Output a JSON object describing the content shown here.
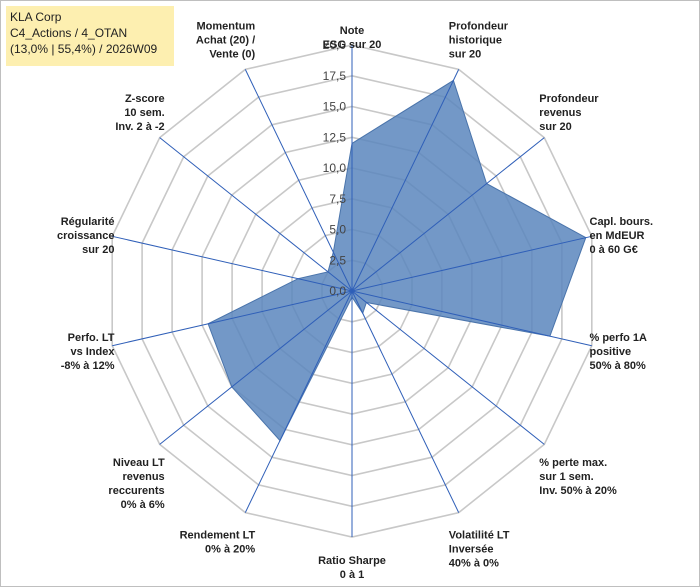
{
  "header": {
    "line1": "KLA Corp",
    "line2": "C4_Actions / 4_OTAN",
    "line3": "(13,0% | 55,4%) / 2026W09"
  },
  "colors": {
    "fill": "#5b86bd",
    "stroke": "#4a74ab",
    "grid": "#c8c8c8",
    "axis": "#2f5fb8",
    "title_bg": "#fdefb0"
  },
  "chart_data": {
    "type": "radar",
    "range": [
      0,
      20
    ],
    "ticks": [
      "0,0",
      "2,5",
      "5,0",
      "7,5",
      "10,0",
      "12,5",
      "15,0",
      "17,5",
      "20,0"
    ],
    "axes": [
      {
        "label": [
          "Note",
          "ESG sur 20"
        ],
        "value": 12.0
      },
      {
        "label": [
          "Profondeur",
          "historique",
          "sur 20"
        ],
        "value": 19.0
      },
      {
        "label": [
          "Profondeur",
          "revenus",
          "sur 20"
        ],
        "value": 14.0
      },
      {
        "label": [
          "Capl. bours.",
          "en MdEUR",
          "0 à 60 G€"
        ],
        "value": 19.5
      },
      {
        "label": [
          "% perfo 1A",
          "positive",
          "50% à 80%"
        ],
        "value": 16.5
      },
      {
        "label": [
          "% perte max.",
          "sur 1 sem.",
          "Inv. 50% à 20%"
        ],
        "value": 1.5
      },
      {
        "label": [
          "Volatilité LT",
          "Inversée",
          "40% à 0%"
        ],
        "value": 2.0
      },
      {
        "label": [
          "Ratio Sharpe",
          "0 à 1"
        ],
        "value": 0.5
      },
      {
        "label": [
          "Rendement LT",
          "0% à 20%"
        ],
        "value": 13.5
      },
      {
        "label": [
          "Niveau LT",
          "revenus",
          "reccurents",
          "0% à 6%"
        ],
        "value": 12.5
      },
      {
        "label": [
          "Perfo. LT",
          "vs Index",
          "-8% à 12%"
        ],
        "value": 12.0
      },
      {
        "label": [
          "Régularité",
          "croissance",
          "sur 20"
        ],
        "value": 4.5
      },
      {
        "label": [
          "Z-score",
          "10 sem.",
          "Inv. 2 à -2"
        ],
        "value": 2.5
      },
      {
        "label": [
          "Momentum",
          "Achat (20) /",
          "Vente (0)"
        ],
        "value": 3.5
      }
    ]
  }
}
